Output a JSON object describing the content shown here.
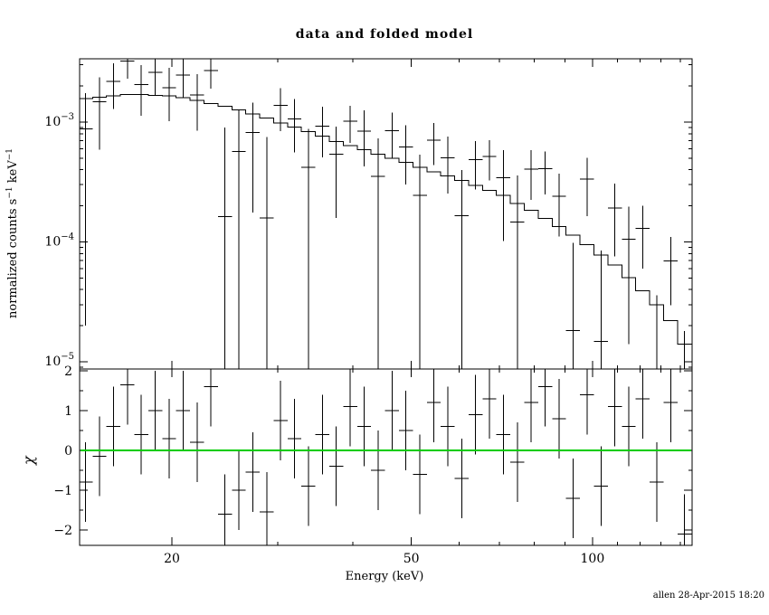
{
  "title": "data and folded model",
  "footer": "allen 28-Apr-2015 18:20",
  "colors": {
    "background": "#ffffff",
    "foreground": "#000000",
    "accent_green": "#00cc00"
  },
  "axes": {
    "x_label": "Energy (keV)",
    "y_label_parts": [
      "normalized counts s",
      "−1",
      " keV",
      "−1"
    ],
    "chi_label": "χ"
  },
  "chart_data": [
    {
      "panel": "top",
      "type": "scatter",
      "title": "data and folded model",
      "xlabel": "Energy (keV)",
      "ylabel": "normalized counts s^-1 keV^-1",
      "xscale": "log",
      "yscale": "log",
      "xlim": [
        14.05,
        146.4
      ],
      "ylim": [
        8.7e-06,
        0.00337
      ],
      "xticks": [
        20,
        50,
        100
      ],
      "xticks_minor": [
        30,
        40,
        60,
        70,
        80,
        90,
        110,
        120,
        130,
        140
      ],
      "yticks": [
        0.001,
        0.0001,
        1e-05
      ],
      "yticks_minor": [
        9e-06,
        2e-05,
        3e-05,
        4e-05,
        5e-05,
        6e-05,
        7e-05,
        8e-05,
        9e-05,
        0.0002,
        0.0003,
        0.0004,
        0.0005,
        0.0006,
        0.0007,
        0.0008,
        0.0009,
        0.002,
        0.003
      ],
      "grid": false,
      "legend": false,
      "bins": {
        "e_edges": [
          14.0,
          14.77,
          15.57,
          16.43,
          17.33,
          18.27,
          19.27,
          20.33,
          21.44,
          22.62,
          23.85,
          25.16,
          26.54,
          27.99,
          29.52,
          31.14,
          32.84,
          34.64,
          36.53,
          38.53,
          40.64,
          42.87,
          45.21,
          47.69,
          50.3,
          53.05,
          55.95,
          59.02,
          62.25,
          65.65,
          69.24,
          73.03,
          77.03,
          81.25,
          85.7,
          90.39,
          95.34,
          100.6,
          106.1,
          111.9,
          118.0,
          124.5,
          131.3,
          138.5,
          146.1
        ]
      },
      "series": [
        {
          "name": "data",
          "style": "cross-error",
          "y": [
            0.00088,
            0.00148,
            0.00219,
            0.00322,
            0.00206,
            0.00259,
            0.00193,
            0.00246,
            0.00168,
            0.00269,
            0.000162,
            0.000567,
            0.000816,
            0.000159,
            0.00138,
            0.00106,
            0.000419,
            0.000927,
            0.000538,
            0.00102,
            0.000838,
            0.000351,
            0.00085,
            0.000621,
            0.000244,
            0.000708,
            0.000504,
            0.000166,
            0.000484,
            0.000516,
            0.000342,
            0.000147,
            0.000405,
            0.000408,
            0.000241,
            1.82e-05,
            0.000334,
            1.48e-05,
            0.000191,
            0.000105,
            0.00013,
            6e-06,
            6.95e-05,
            2e-06
          ],
          "yerr": [
            0.00086,
            0.00089,
            0.00091,
            0.00093,
            0.00093,
            0.00092,
            0.00091,
            0.00087,
            0.00083,
            0.00079,
            0.00074,
            0.00069,
            0.00064,
            0.00059,
            0.00054,
            0.0005,
            0.00046,
            0.00042,
            0.00038,
            0.00035,
            0.00041,
            0.00038,
            0.00035,
            0.00032,
            0.00029,
            0.00027,
            0.00025,
            0.00023,
            0.00021,
            0.00019,
            0.00024,
            0.00021,
            0.00018,
            0.00016,
            0.00013,
            8e-05,
            0.00017,
            7e-05,
            0.000115,
            9.1e-05,
            7e-05,
            3e-05,
            4e-05,
            1.6e-05
          ]
        },
        {
          "name": "folded model",
          "style": "step-histogram",
          "y": [
            0.00157,
            0.00161,
            0.00165,
            0.00169,
            0.00169,
            0.00167,
            0.00165,
            0.00159,
            0.00151,
            0.00143,
            0.00135,
            0.00126,
            0.00117,
            0.00108,
            0.00098,
            0.00091,
            0.00083,
            0.00076,
            0.00069,
            0.000635,
            0.00059,
            0.00054,
            0.0005,
            0.00046,
            0.00042,
            0.000385,
            0.000355,
            0.000325,
            0.000297,
            0.00027,
            0.000244,
            0.00021,
            0.000184,
            0.000157,
            0.000134,
            0.000114,
            9.5e-05,
            7.8e-05,
            6.4e-05,
            5.05e-05,
            3.9e-05,
            3e-05,
            2.2e-05,
            1.4e-05
          ]
        }
      ]
    },
    {
      "panel": "bottom",
      "type": "scatter",
      "ylabel": "χ",
      "xscale": "log",
      "xlim": [
        14.05,
        146.4
      ],
      "ylim": [
        -2.386,
        2.045
      ],
      "yticks": [
        2,
        1,
        0,
        -1,
        -2
      ],
      "yticks_minor": [
        -1.5,
        -0.5,
        0.5,
        1.5
      ],
      "bins": "shared-with-top-panel",
      "series": [
        {
          "name": "chi",
          "style": "cross-error",
          "y": [
            -0.8,
            -0.15,
            0.6,
            1.65,
            0.4,
            1.0,
            0.3,
            1.0,
            0.2,
            1.6,
            -1.6,
            -1.0,
            -0.55,
            -1.55,
            0.75,
            0.3,
            -0.9,
            0.4,
            -0.4,
            1.1,
            0.6,
            -0.5,
            1.0,
            0.5,
            -0.6,
            1.2,
            0.6,
            -0.7,
            0.9,
            1.3,
            0.4,
            -0.3,
            1.2,
            1.6,
            0.8,
            -1.2,
            1.4,
            -0.9,
            1.1,
            0.6,
            1.3,
            -0.8,
            1.2,
            -2.1
          ],
          "yerr": 1
        },
        {
          "name": "zero-line",
          "style": "hline",
          "y": 0,
          "color": "#00cc00"
        }
      ]
    }
  ]
}
